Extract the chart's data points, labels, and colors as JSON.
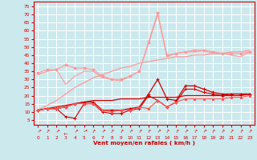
{
  "xlabel": "Vent moyen/en rafales ( km/h )",
  "bg_color": "#cce9ee",
  "grid_color": "#ffffff",
  "x": [
    0,
    1,
    2,
    3,
    4,
    5,
    6,
    7,
    8,
    9,
    10,
    11,
    12,
    13,
    14,
    15,
    16,
    17,
    18,
    19,
    20,
    21,
    22,
    23
  ],
  "line_gust_noisy": [
    34,
    36,
    36,
    39,
    37,
    37,
    36,
    32,
    30,
    30,
    32,
    35,
    53,
    71,
    45,
    46,
    47,
    48,
    48,
    47,
    46,
    46,
    46,
    47
  ],
  "line_gust_smooth": [
    33,
    35,
    36,
    27,
    32,
    35,
    35,
    31,
    30,
    29,
    32,
    35,
    52,
    70,
    44,
    46,
    47,
    47,
    48,
    46,
    46,
    45,
    44,
    47
  ],
  "line_trend_upper": [
    11,
    14,
    17,
    21,
    25,
    28,
    31,
    33,
    35,
    37,
    38,
    40,
    41,
    42,
    43,
    44,
    44,
    45,
    45,
    46,
    46,
    47,
    47,
    48
  ],
  "line_trend_lower": [
    11,
    12,
    13,
    14,
    15,
    16,
    17,
    17,
    17,
    18,
    18,
    18,
    19,
    19,
    19,
    19,
    20,
    20,
    20,
    20,
    20,
    20,
    20,
    21
  ],
  "line_mean1": [
    11,
    12,
    12,
    13,
    15,
    16,
    16,
    11,
    11,
    11,
    12,
    13,
    21,
    30,
    18,
    17,
    26,
    26,
    24,
    22,
    21,
    21,
    21,
    21
  ],
  "line_mean2": [
    11,
    12,
    12,
    7,
    6,
    15,
    15,
    10,
    9,
    9,
    11,
    12,
    20,
    17,
    13,
    16,
    24,
    24,
    22,
    21,
    20,
    21,
    21,
    21
  ],
  "line_mean3": [
    11,
    12,
    12,
    13,
    15,
    15,
    15,
    11,
    10,
    11,
    11,
    13,
    12,
    17,
    13,
    16,
    18,
    18,
    18,
    18,
    18,
    19,
    19,
    20
  ],
  "color_dark_red": "#cc0000",
  "color_light_red": "#ff9999",
  "color_medium_red": "#ff5555",
  "yticks": [
    5,
    10,
    15,
    20,
    25,
    30,
    35,
    40,
    45,
    50,
    55,
    60,
    65,
    70,
    75
  ],
  "ylim": [
    2,
    78
  ],
  "xlim": [
    -0.5,
    23.5
  ]
}
